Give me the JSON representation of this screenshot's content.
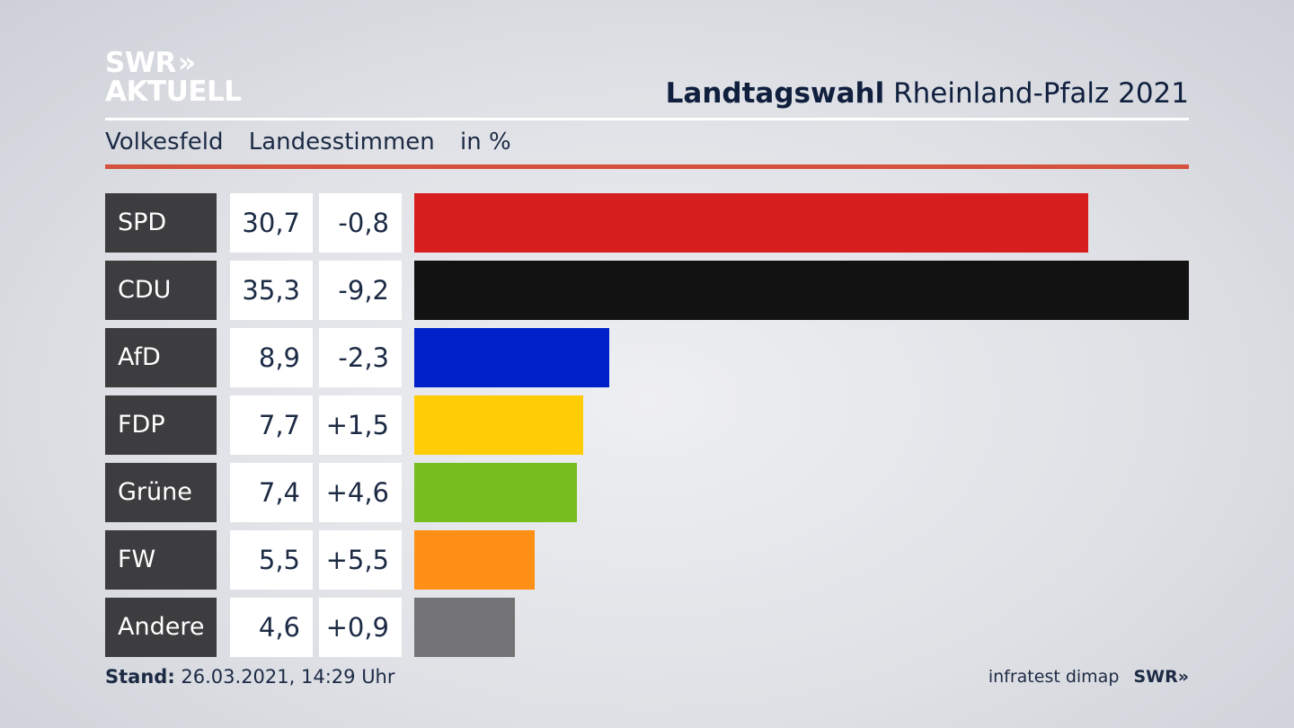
{
  "logo": {
    "line1": "SWR",
    "arrows": "»",
    "line2": "AKTUELL"
  },
  "header": {
    "title_bold": "Landtagswahl",
    "title_rest": "Rheinland-Pfalz 2021"
  },
  "subheader": {
    "region": "Volkesfeld",
    "vote_type": "Landesstimmen",
    "unit": "in %"
  },
  "colors": {
    "accent_rule": "#d5513c",
    "party_label_bg": "#3d3d3f"
  },
  "chart_data": {
    "type": "bar",
    "orientation": "horizontal",
    "categories": [
      "SPD",
      "CDU",
      "AfD",
      "FDP",
      "Grüne",
      "FW",
      "Andere"
    ],
    "values": [
      30.7,
      35.3,
      8.9,
      7.7,
      7.4,
      5.5,
      4.6
    ],
    "value_labels": [
      "30,7",
      "35,3",
      "8,9",
      "7,7",
      "7,4",
      "5,5",
      "4,6"
    ],
    "changes": [
      -0.8,
      -9.2,
      -2.3,
      1.5,
      4.6,
      5.5,
      0.9
    ],
    "change_labels": [
      "-0,8",
      "-9,2",
      "-2,3",
      "+1,5",
      "+4,6",
      "+5,5",
      "+0,9"
    ],
    "colors": [
      "#d71f20",
      "#121212",
      "#0021c9",
      "#ffcc05",
      "#78bd1e",
      "#ff8f17",
      "#737375"
    ],
    "xlim": [
      0,
      35.3
    ]
  },
  "footer": {
    "stand_label": "Stand:",
    "stand_value": "26.03.2021, 14:29 Uhr",
    "source": "infratest dimap",
    "brand": "SWR",
    "brand_arrows": "»"
  }
}
